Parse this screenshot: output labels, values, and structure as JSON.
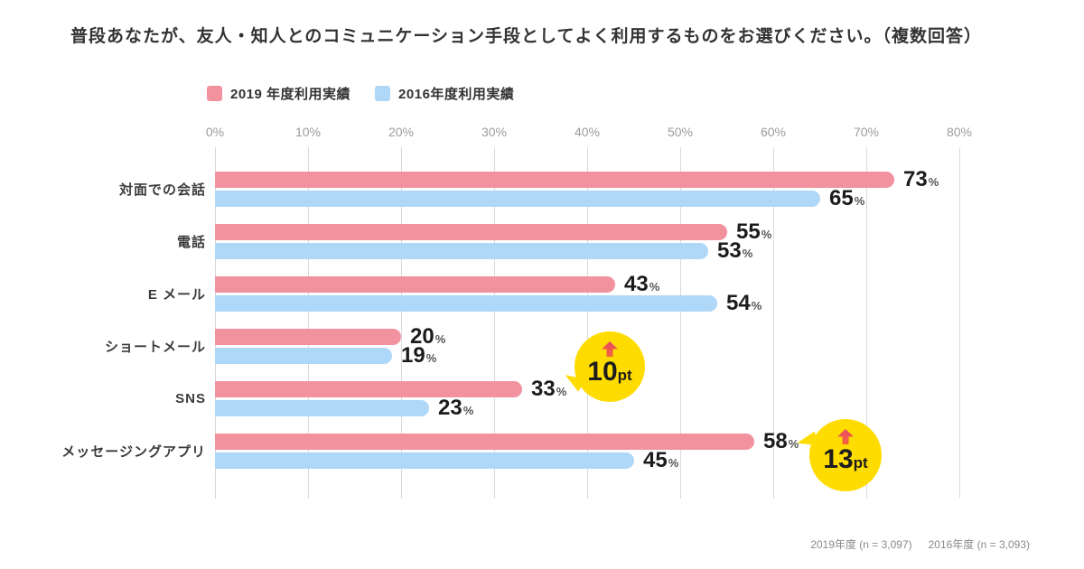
{
  "title": "普段あなたが、友人・知人とのコミュニケーション手段としてよく利用するものをお選びください。（複数回答）",
  "legend": [
    {
      "label": "2019 年度利用実績",
      "color": "#F2929F"
    },
    {
      "label": "2016年度利用実績",
      "color": "#AED7F8"
    }
  ],
  "chart_data": {
    "type": "bar",
    "orientation": "horizontal",
    "title": "普段あなたが、友人・知人とのコミュニケーション手段としてよく利用するものをお選びください。（複数回答）",
    "categories": [
      "対面での会話",
      "電話",
      "E メール",
      "ショートメール",
      "SNS",
      "メッセージングアプリ"
    ],
    "series": [
      {
        "name": "2019 年度利用実績",
        "color": "#F2929F",
        "values": [
          73,
          55,
          43,
          20,
          33,
          58
        ]
      },
      {
        "name": "2016年度利用実績",
        "color": "#AED7F8",
        "values": [
          65,
          53,
          54,
          19,
          23,
          45
        ]
      }
    ],
    "value_unit": "%",
    "x_ticks": [
      "0%",
      "10%",
      "20%",
      "30%",
      "40%",
      "50%",
      "60%",
      "70%",
      "80%"
    ],
    "xlim": [
      0,
      80
    ],
    "grid": true,
    "legend_position": "top",
    "annotations": [
      {
        "value": "10",
        "unit": "pt",
        "category": "SNS",
        "icon": "up-arrow"
      },
      {
        "value": "13",
        "unit": "pt",
        "category": "メッセージングアプリ",
        "icon": "up-arrow"
      }
    ]
  },
  "footer": {
    "note_2019": "2019年度 (n = 3,097)",
    "note_2016": "2016年度 (n = 3,093)"
  },
  "colors": {
    "bar_2019": "#F2929F",
    "bar_2016": "#AED7F8",
    "bubble": "#FFDC00",
    "bubble_arrow_top": "#EA4A63",
    "bubble_arrow_bottom": "#F2653F",
    "grid": "#D9D9D9"
  }
}
